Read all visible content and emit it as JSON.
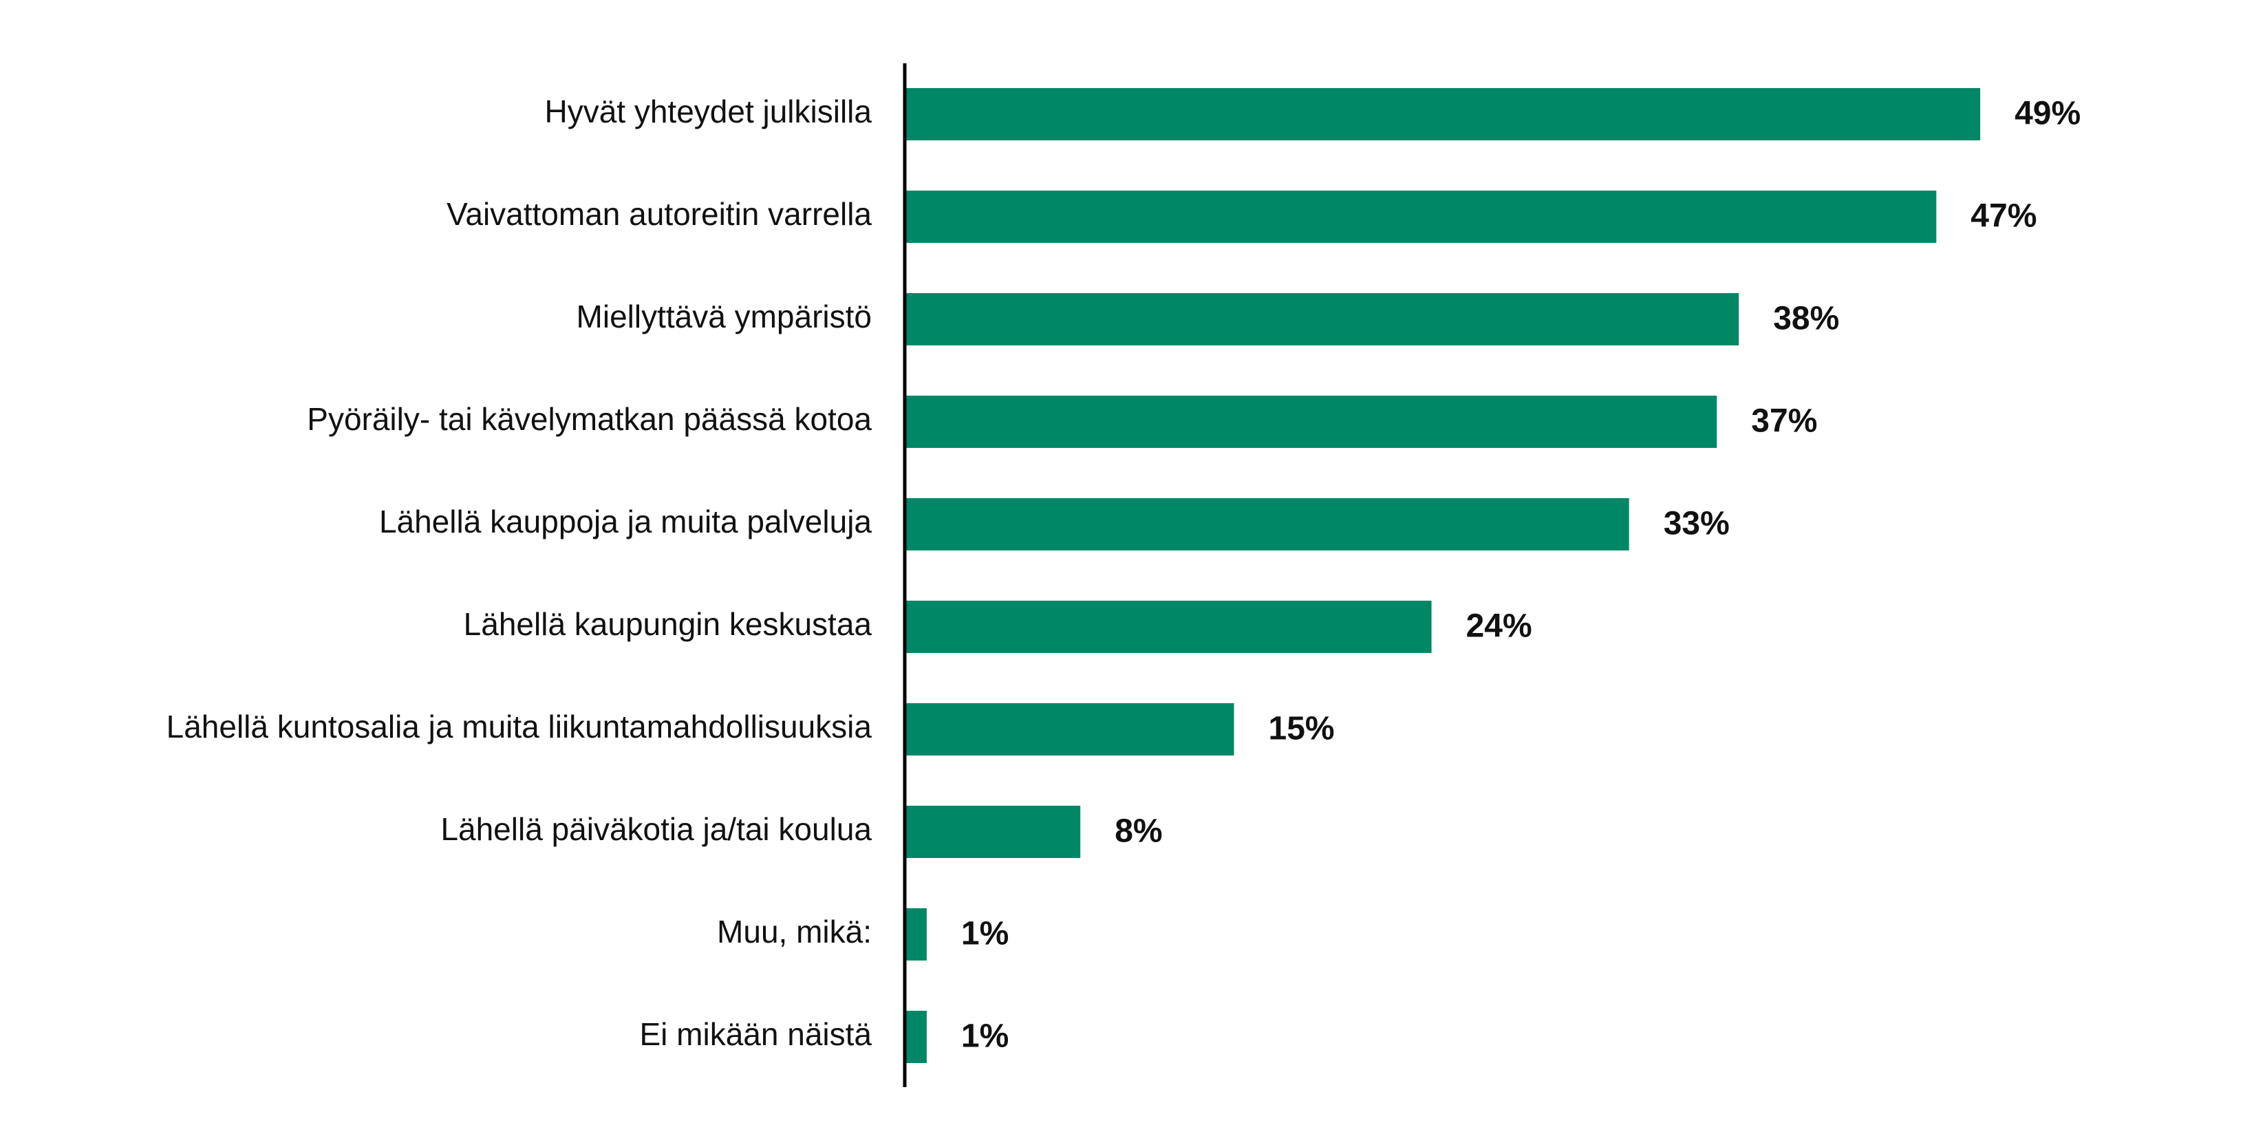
{
  "chart_data": {
    "type": "bar",
    "orientation": "horizontal",
    "categories": [
      "Hyvät yhteydet julkisilla",
      "Vaivattoman autoreitin varrella",
      "Miellyttävä ympäristö",
      "Pyöräily- tai kävelymatkan päässä kotoa",
      "Lähellä kauppoja ja muita palveluja",
      "Lähellä kaupungin keskustaa",
      "Lähellä kuntosalia ja muita liikuntamahdollisuuksia",
      "Lähellä päiväkotia ja/tai koulua",
      "Muu, mikä:",
      "Ei mikään näistä"
    ],
    "values": [
      49,
      47,
      38,
      37,
      33,
      24,
      15,
      8,
      1,
      1
    ],
    "value_labels": [
      "49%",
      "47%",
      "38%",
      "37%",
      "33%",
      "24%",
      "15%",
      "8%",
      "1%",
      "1%"
    ],
    "unit": "%",
    "title": "",
    "xlabel": "",
    "ylabel": "",
    "xlim": [
      0,
      60
    ],
    "grid": false,
    "legend": "none",
    "bar_color": "#008866",
    "axis_color": "#000000",
    "text_color": "#111111"
  }
}
